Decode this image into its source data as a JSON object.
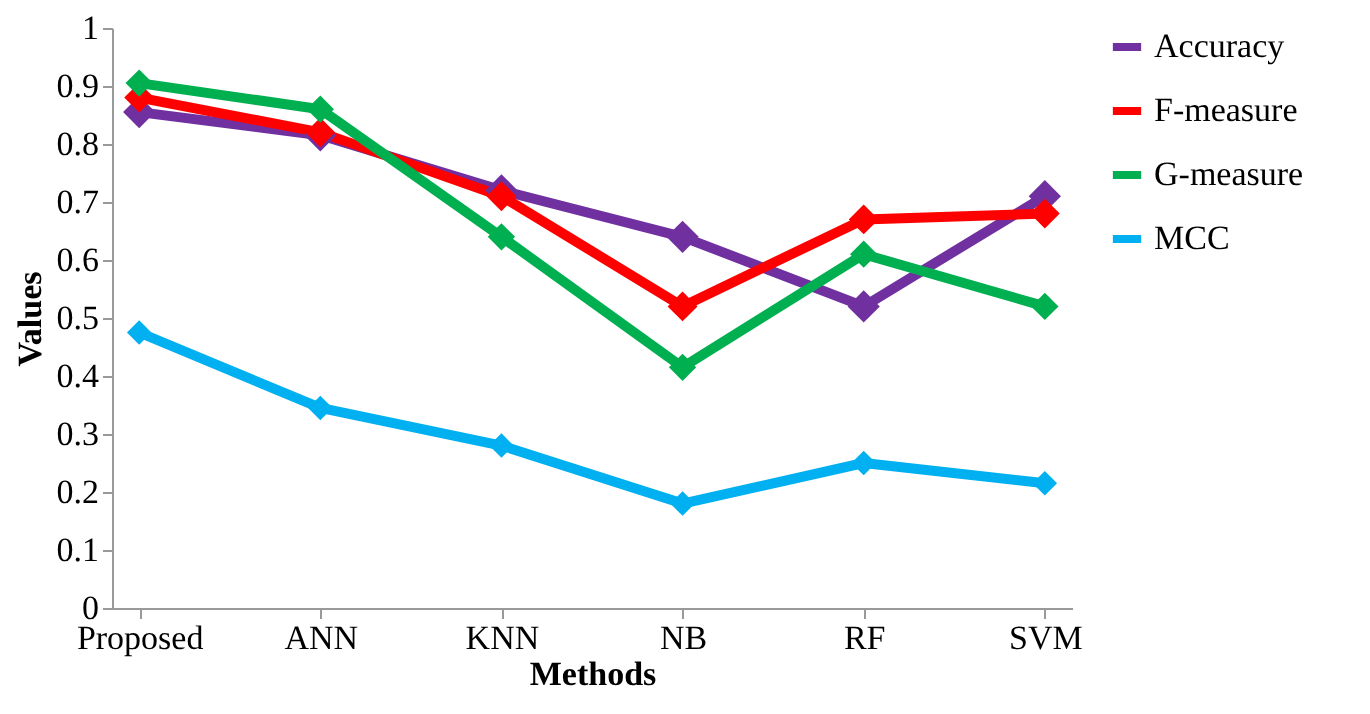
{
  "chart_data": {
    "type": "line",
    "xlabel": "Methods",
    "ylabel": "Values",
    "categories": [
      "Proposed",
      "ANN",
      "KNN",
      "NB",
      "RF",
      "SVM"
    ],
    "series": [
      {
        "name": "Accuracy",
        "color": "#7030a0",
        "values": [
          0.855,
          0.815,
          0.72,
          0.64,
          0.52,
          0.71
        ]
      },
      {
        "name": "F-measure",
        "color": "#ff0000",
        "values": [
          0.88,
          0.82,
          0.71,
          0.52,
          0.67,
          0.68
        ]
      },
      {
        "name": "G-measure",
        "color": "#00b050",
        "values": [
          0.905,
          0.86,
          0.64,
          0.415,
          0.61,
          0.52
        ]
      },
      {
        "name": "MCC",
        "color": "#00b0f0",
        "values": [
          0.475,
          0.345,
          0.28,
          0.18,
          0.25,
          0.215
        ]
      }
    ],
    "ylim": [
      0,
      1
    ],
    "yticks": [
      0,
      0.1,
      0.2,
      0.3,
      0.4,
      0.5,
      0.6,
      0.7,
      0.8,
      0.9,
      1
    ],
    "grid": false,
    "legend": "right",
    "marker": "diamond",
    "line_style": "solid"
  }
}
